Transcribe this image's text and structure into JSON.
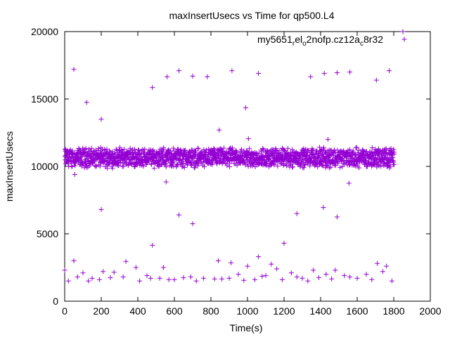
{
  "chart_data": {
    "type": "scatter",
    "title": "maxInsertUsecs vs Time for qp500.L4",
    "xlabel": "Time(s)",
    "ylabel": "maxInsertUsecs",
    "xlim": [
      0,
      2000
    ],
    "ylim": [
      0,
      20000
    ],
    "xticks": [
      "0",
      "200",
      "400",
      "600",
      "800",
      "1000",
      "1200",
      "1400",
      "1600",
      "1800",
      "2000"
    ],
    "yticks": [
      "0",
      "5000",
      "10000",
      "15000",
      "20000"
    ],
    "grid": false,
    "legend_position": "top-right",
    "marker": "plus",
    "series": [
      {
        "name_parts": [
          {
            "text": "my5651",
            "sub": false
          },
          {
            "text": "r",
            "sub": true
          },
          {
            "text": "el",
            "sub": false
          },
          {
            "text": "o",
            "sub": true
          },
          {
            "text": "2nofp.cz12a",
            "sub": false
          },
          {
            "text": "c",
            "sub": true
          },
          {
            "text": "8r32",
            "sub": false
          }
        ],
        "color": "#9400d3",
        "points": [
          [
            1850,
            20000
          ],
          [
            50,
            17200
          ],
          [
            625,
            17100
          ],
          [
            915,
            17100
          ],
          [
            1775,
            17100
          ],
          [
            1560,
            17000
          ],
          [
            1490,
            16950
          ],
          [
            1060,
            16900
          ],
          [
            1420,
            16900
          ],
          [
            700,
            16700
          ],
          [
            560,
            16650
          ],
          [
            780,
            16650
          ],
          [
            1345,
            16650
          ],
          [
            1705,
            16400
          ],
          [
            480,
            15850
          ],
          [
            120,
            14750
          ],
          [
            990,
            14350
          ],
          [
            200,
            13500
          ],
          [
            845,
            12700
          ],
          [
            1005,
            12050
          ],
          [
            1440,
            12000
          ],
          [
            55,
            9400
          ],
          [
            555,
            8850
          ],
          [
            1555,
            8750
          ],
          [
            200,
            6800
          ],
          [
            1415,
            6950
          ],
          [
            1270,
            6500
          ],
          [
            625,
            6400
          ],
          [
            1490,
            6250
          ],
          [
            700,
            5750
          ],
          [
            1200,
            4300
          ],
          [
            480,
            4150
          ],
          [
            1060,
            3300
          ],
          [
            50,
            3000
          ],
          [
            335,
            2950
          ],
          [
            840,
            3000
          ],
          [
            910,
            2850
          ],
          [
            1130,
            2750
          ],
          [
            1710,
            2800
          ],
          [
            0,
            2300
          ],
          [
            100,
            2100
          ],
          [
            150,
            1700
          ],
          [
            210,
            2200
          ],
          [
            270,
            2150
          ],
          [
            390,
            2500
          ],
          [
            450,
            1900
          ],
          [
            540,
            2500
          ],
          [
            600,
            1600
          ],
          [
            650,
            1750
          ],
          [
            720,
            1500
          ],
          [
            760,
            1700
          ],
          [
            860,
            1650
          ],
          [
            950,
            2000
          ],
          [
            1000,
            2600
          ],
          [
            1040,
            1600
          ],
          [
            1100,
            1900
          ],
          [
            1160,
            2400
          ],
          [
            1240,
            2100
          ],
          [
            1300,
            1700
          ],
          [
            1360,
            2300
          ],
          [
            1430,
            2000
          ],
          [
            1480,
            2300
          ],
          [
            1530,
            1900
          ],
          [
            1600,
            1700
          ],
          [
            1650,
            2000
          ],
          [
            1760,
            2600
          ],
          [
            1790,
            1500
          ],
          [
            20,
            1500
          ],
          [
            70,
            1800
          ],
          [
            130,
            1500
          ],
          [
            190,
            1600
          ],
          [
            250,
            1750
          ],
          [
            320,
            1800
          ],
          [
            410,
            1500
          ],
          [
            470,
            1700
          ],
          [
            520,
            1700
          ],
          [
            570,
            1600
          ],
          [
            690,
            1800
          ],
          [
            820,
            1650
          ],
          [
            900,
            1700
          ],
          [
            980,
            1550
          ],
          [
            1080,
            1850
          ],
          [
            1190,
            1600
          ],
          [
            1270,
            1800
          ],
          [
            1330,
            1500
          ],
          [
            1390,
            1750
          ],
          [
            1460,
            1650
          ],
          [
            1560,
            1800
          ],
          [
            1680,
            1600
          ],
          [
            1740,
            2200
          ]
        ],
        "band": {
          "x_start": 0,
          "x_end": 1800,
          "lower": 10100,
          "upper": 11200,
          "note": ""
        }
      }
    ]
  }
}
